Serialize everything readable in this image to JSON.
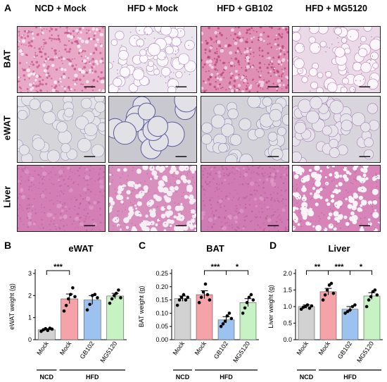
{
  "panel_a": {
    "letter": "A",
    "columns": [
      "NCD + Mock",
      "HFD + Mock",
      "HFD + GB102",
      "HFD + MG5120"
    ],
    "rows": [
      "BAT",
      "eWAT",
      "Liver"
    ]
  },
  "tiles": [
    {
      "row": "BAT",
      "col": "NCD + Mock",
      "style": "bat-dense",
      "base": "#e8a9c6",
      "spot": "#c8508a",
      "vac": "#f6e4ee"
    },
    {
      "row": "BAT",
      "col": "HFD + Mock",
      "style": "lipid",
      "base": "#ece6ee",
      "spot": "#b894c4",
      "vac": "#faf8fb"
    },
    {
      "row": "BAT",
      "col": "HFD + GB102",
      "style": "bat-dense",
      "base": "#de8fb3",
      "spot": "#b83a74",
      "vac": "#f1cfe0"
    },
    {
      "row": "BAT",
      "col": "HFD + MG5120",
      "style": "lipid",
      "base": "#ead9e6",
      "spot": "#c28cbc",
      "vac": "#fbf6fa"
    },
    {
      "row": "eWAT",
      "col": "NCD + Mock",
      "style": "wat-small",
      "base": "#d6d5da",
      "spot": "#9b97b8",
      "vac": "#e4e3e8"
    },
    {
      "row": "eWAT",
      "col": "HFD + Mock",
      "style": "wat-large",
      "base": "#c9c8cf",
      "spot": "#5b5aa0",
      "vac": "#e2e1e6"
    },
    {
      "row": "eWAT",
      "col": "HFD + GB102",
      "style": "wat-small",
      "base": "#d3d2d8",
      "spot": "#8a86b4",
      "vac": "#e3e2e7"
    },
    {
      "row": "eWAT",
      "col": "HFD + MG5120",
      "style": "wat-small",
      "base": "#d8d5dc",
      "spot": "#a47fb4",
      "vac": "#e6e4ea"
    },
    {
      "row": "Liver",
      "col": "NCD + Mock",
      "style": "liver",
      "base": "#d37fb6",
      "spot": "#b25f9c",
      "vac": "#e4a4cc"
    },
    {
      "row": "Liver",
      "col": "HFD + Mock",
      "style": "steatosis",
      "base": "#d98fbd",
      "spot": "#b86aa2",
      "vac": "#f7eef4"
    },
    {
      "row": "Liver",
      "col": "HFD + GB102",
      "style": "liver",
      "base": "#d07bb3",
      "spot": "#ae5b98",
      "vac": "#e2a2ca"
    },
    {
      "row": "Liver",
      "col": "HFD + MG5120",
      "style": "steatosis",
      "base": "#d784b8",
      "spot": "#b45f9b",
      "vac": "#faf3f8"
    }
  ],
  "chart_data": [
    {
      "panel": "B",
      "type": "bar",
      "title": "eWAT",
      "ylabel": "eWAT weight (g)",
      "ylim": [
        0,
        3
      ],
      "yticks": [
        "0",
        "1",
        "2",
        "3"
      ],
      "categories": [
        "Mock",
        "Mock",
        "GB102",
        "MG5120"
      ],
      "values": [
        0.45,
        1.85,
        1.8,
        1.98
      ],
      "errors": [
        0.05,
        0.22,
        0.2,
        0.12
      ],
      "colors": [
        "#d2d2d2",
        "#f5a3a8",
        "#9cc3f0",
        "#c7f2c4"
      ],
      "points": [
        [
          0.38,
          0.45,
          0.5,
          0.42,
          0.52,
          0.48
        ],
        [
          1.3,
          1.55,
          1.85,
          2.05,
          2.35,
          1.95
        ],
        [
          1.35,
          1.6,
          2.0,
          2.05,
          1.9
        ],
        [
          1.65,
          1.85,
          2.0,
          2.1,
          2.25,
          1.9
        ]
      ],
      "groups": [
        {
          "label": "NCD",
          "from": 0,
          "to": 0
        },
        {
          "label": "HFD",
          "from": 1,
          "to": 3
        }
      ],
      "sig": [
        {
          "from": 0,
          "to": 1,
          "label": "***"
        }
      ]
    },
    {
      "panel": "C",
      "type": "bar",
      "title": "BAT",
      "ylabel": "BAT weight (g)",
      "ylim": [
        0,
        0.25
      ],
      "yticks": [
        "0.00",
        "0.05",
        "0.10",
        "0.15",
        "0.20",
        "0.25"
      ],
      "categories": [
        "Mock",
        "Mock",
        "GB102",
        "MG5120"
      ],
      "values": [
        0.155,
        0.17,
        0.075,
        0.14
      ],
      "errors": [
        0.01,
        0.015,
        0.012,
        0.015
      ],
      "colors": [
        "#d2d2d2",
        "#f5a3a8",
        "#9cc3f0",
        "#c7f2c4"
      ],
      "points": [
        [
          0.13,
          0.15,
          0.16,
          0.17,
          0.15,
          0.16
        ],
        [
          0.14,
          0.16,
          0.18,
          0.21,
          0.17,
          0.15
        ],
        [
          0.05,
          0.06,
          0.07,
          0.09,
          0.1,
          0.08
        ],
        [
          0.1,
          0.12,
          0.14,
          0.16,
          0.17,
          0.15
        ]
      ],
      "groups": [
        {
          "label": "NCD",
          "from": 0,
          "to": 0
        },
        {
          "label": "HFD",
          "from": 1,
          "to": 3
        }
      ],
      "sig": [
        {
          "from": 1,
          "to": 2,
          "label": "***"
        },
        {
          "from": 2,
          "to": 3,
          "label": "*"
        }
      ]
    },
    {
      "panel": "D",
      "type": "bar",
      "title": "Liver",
      "ylabel": "Liver weight (g)",
      "ylim": [
        0,
        2
      ],
      "yticks": [
        "0.0",
        "0.5",
        "1.0",
        "1.5",
        "2.0"
      ],
      "categories": [
        "Mock",
        "Mock",
        "GB102",
        "MG5120"
      ],
      "values": [
        1.0,
        1.45,
        0.92,
        1.32
      ],
      "errors": [
        0.05,
        0.1,
        0.08,
        0.1
      ],
      "colors": [
        "#d2d2d2",
        "#f5a3a8",
        "#9cc3f0",
        "#c7f2c4"
      ],
      "points": [
        [
          0.92,
          0.98,
          1.0,
          1.05,
          0.95,
          1.02
        ],
        [
          1.2,
          1.35,
          1.5,
          1.65,
          1.7,
          1.4
        ],
        [
          0.8,
          0.85,
          0.9,
          1.0,
          1.05
        ],
        [
          1.0,
          1.2,
          1.3,
          1.45,
          1.5,
          1.35
        ]
      ],
      "groups": [
        {
          "label": "NCD",
          "from": 0,
          "to": 0
        },
        {
          "label": "HFD",
          "from": 1,
          "to": 3
        }
      ],
      "sig": [
        {
          "from": 0,
          "to": 1,
          "label": "**"
        },
        {
          "from": 1,
          "to": 2,
          "label": "***"
        },
        {
          "from": 2,
          "to": 3,
          "label": "*"
        }
      ]
    }
  ]
}
